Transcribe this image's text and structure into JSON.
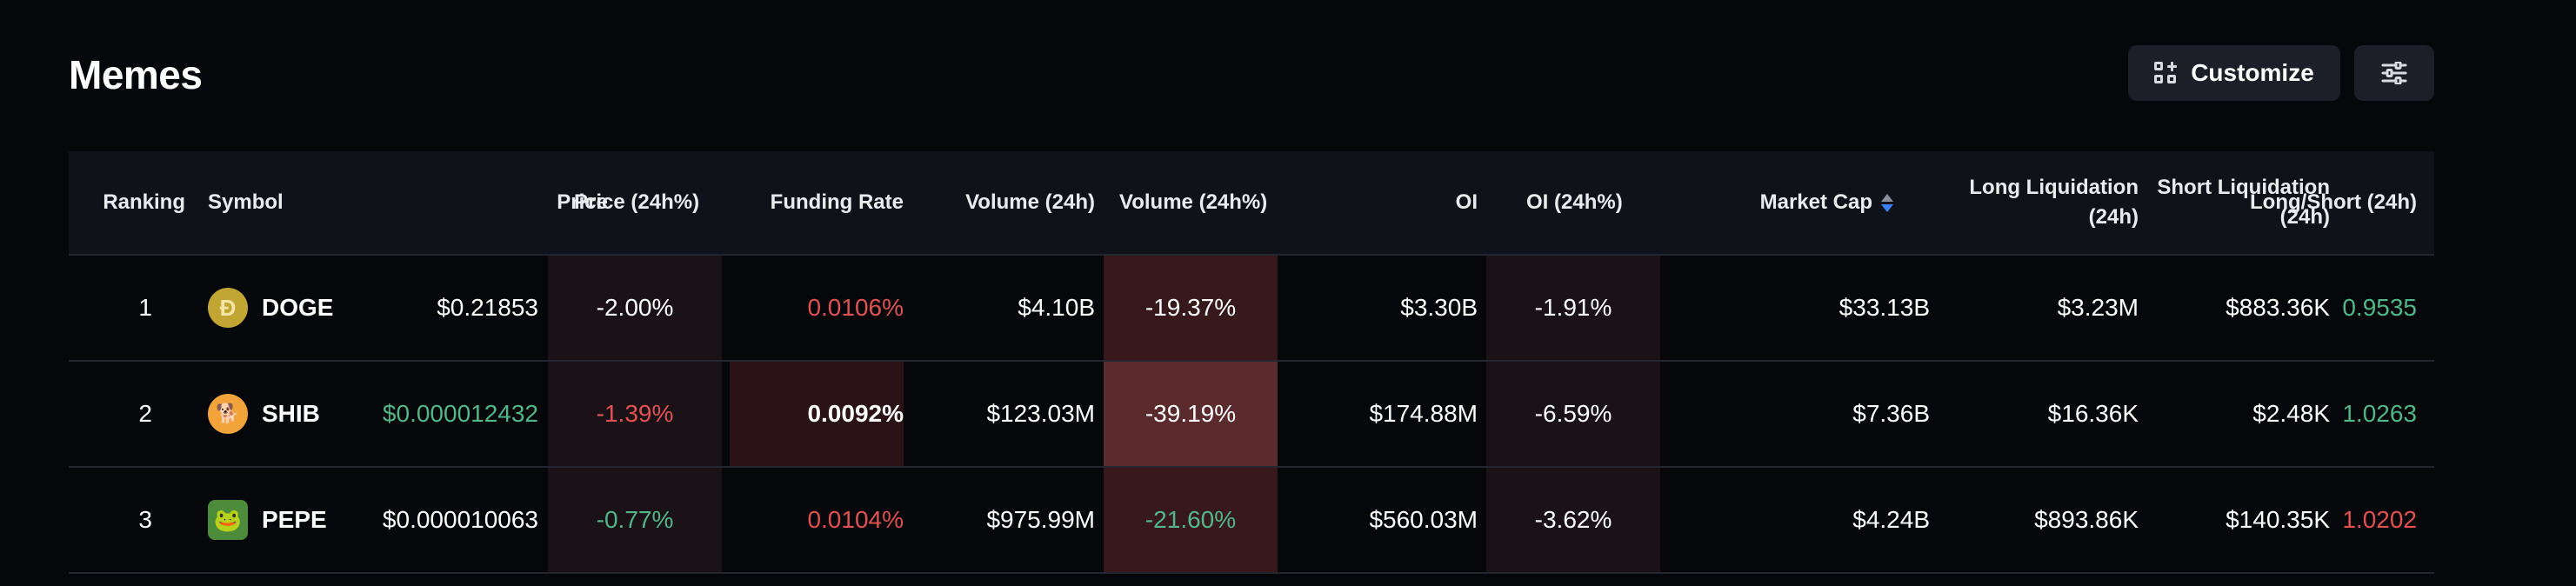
{
  "header": {
    "title": "Memes",
    "customize_label": "Customize"
  },
  "table": {
    "columns": {
      "ranking": "Ranking",
      "symbol": "Symbol",
      "price": "Price",
      "price_24h": "Price (24h%)",
      "funding_rate": "Funding Rate",
      "volume_24h": "Volume (24h)",
      "volume_24h_pct": "Volume (24h%)",
      "oi": "OI",
      "oi_24h": "OI (24h%)",
      "market_cap": "Market Cap",
      "long_liq_line1": "Long Liquidation",
      "long_liq_line2": "(24h)",
      "short_liq_line1": "Short Liquidation",
      "short_liq_line2": "(24h)",
      "long_short": "Long/Short (24h)"
    },
    "rows": [
      {
        "ranking": "1",
        "symbol": "DOGE",
        "icon": "doge-coin-icon",
        "price": "$0.21853",
        "price_24h": "-2.00%",
        "funding_rate": "0.0106%",
        "volume_24h": "$4.10B",
        "volume_24h_pct": "-19.37%",
        "oi": "$3.30B",
        "oi_24h": "-1.91%",
        "market_cap": "$33.13B",
        "long_liq": "$3.23M",
        "short_liq": "$883.36K",
        "long_short": "0.9535"
      },
      {
        "ranking": "2",
        "symbol": "SHIB",
        "icon": "shib-coin-icon",
        "price": "$0.000012432",
        "price_24h": "-1.39%",
        "funding_rate": "0.0092%",
        "volume_24h": "$123.03M",
        "volume_24h_pct": "-39.19%",
        "oi": "$174.88M",
        "oi_24h": "-6.59%",
        "market_cap": "$7.36B",
        "long_liq": "$16.36K",
        "short_liq": "$2.48K",
        "long_short": "1.0263"
      },
      {
        "ranking": "3",
        "symbol": "PEPE",
        "icon": "pepe-coin-icon",
        "price": "$0.000010063",
        "price_24h": "-0.77%",
        "funding_rate": "0.0104%",
        "volume_24h": "$975.99M",
        "volume_24h_pct": "-21.60%",
        "oi": "$560.03M",
        "oi_24h": "-3.62%",
        "market_cap": "$4.24B",
        "long_liq": "$893.86K",
        "short_liq": "$140.35K",
        "long_short": "1.0202"
      }
    ]
  },
  "colors": {
    "background": "#06070b",
    "header_bg": "#10121a",
    "positive": "#52b788",
    "negative": "#e05252",
    "sort_active": "#3b82f6"
  }
}
